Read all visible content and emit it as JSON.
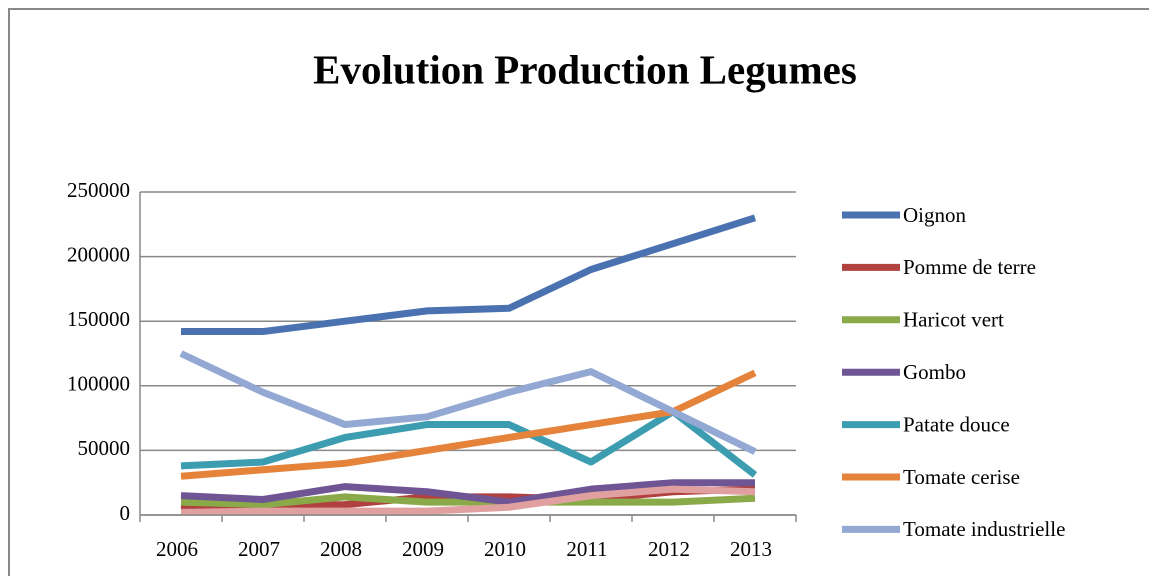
{
  "chart_data": {
    "type": "line",
    "title": "Evolution Production Legumes",
    "categories": [
      "2006",
      "2007",
      "2008",
      "2009",
      "2010",
      "2011",
      "2012",
      "2013"
    ],
    "ylim": [
      0,
      250000
    ],
    "yticks": [
      0,
      50000,
      100000,
      150000,
      200000,
      250000
    ],
    "grid": true,
    "series": [
      {
        "name": "Oignon",
        "color": "#4a72b0",
        "values": [
          142000,
          142000,
          150000,
          158000,
          160000,
          190000,
          210000,
          230000
        ]
      },
      {
        "name": "Pomme de terre",
        "color": "#b0413e",
        "values": [
          5000,
          7000,
          8000,
          14000,
          14000,
          12000,
          18000,
          20000
        ]
      },
      {
        "name": "Haricot vert",
        "color": "#8aaa4a",
        "values": [
          10000,
          8000,
          14000,
          10000,
          10000,
          10000,
          10000,
          13000
        ]
      },
      {
        "name": "Gombo",
        "color": "#6f5594",
        "values": [
          15000,
          12000,
          22000,
          18000,
          10000,
          20000,
          25000,
          25000
        ]
      },
      {
        "name": "Patate douce",
        "color": "#3c9cb0",
        "values": [
          38000,
          41000,
          60000,
          70000,
          70000,
          41000,
          80000,
          31000
        ]
      },
      {
        "name": "Tomate cerise",
        "color": "#e5833b",
        "values": [
          30000,
          35000,
          40000,
          50000,
          60000,
          70000,
          80000,
          110000
        ]
      },
      {
        "name": "Tomate industrielle",
        "color": "#93a9d4",
        "values": [
          125000,
          95000,
          70000,
          76000,
          95000,
          111000,
          80000,
          49000
        ]
      },
      {
        "name": null,
        "color": "#e0a0a0",
        "values": [
          2000,
          3000,
          3000,
          3000,
          6000,
          15000,
          20000,
          18000
        ]
      }
    ]
  }
}
